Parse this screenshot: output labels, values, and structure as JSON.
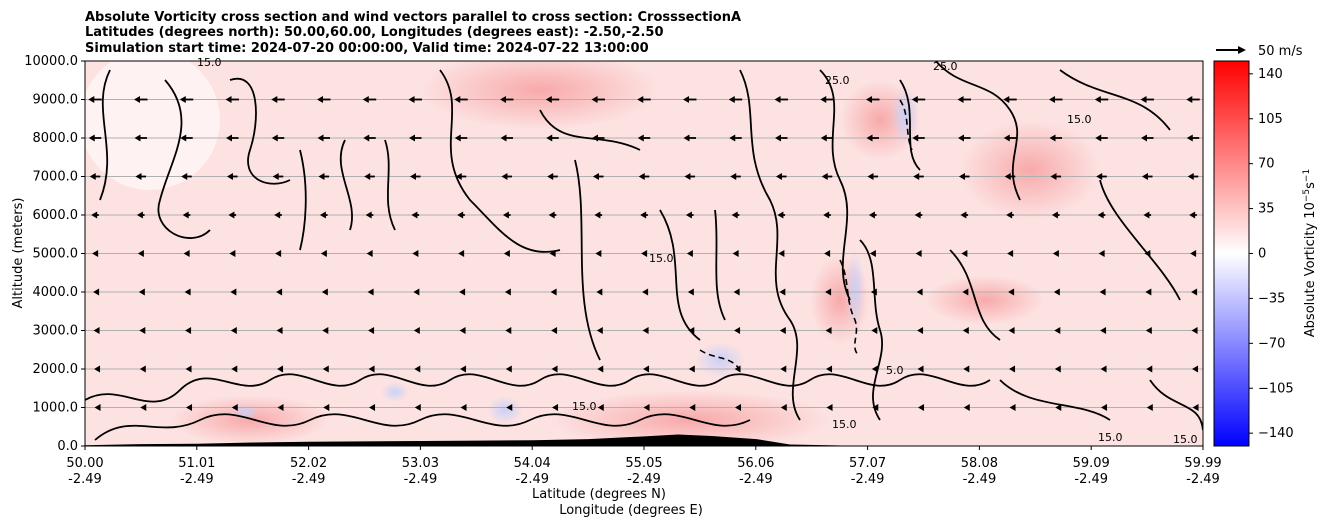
{
  "chart_data": {
    "type": "heatmap",
    "title": [
      "Absolute Vorticity cross section and wind vectors parallel to cross section: CrosssectionA",
      "Latitudes (degrees north): 50.00,60.00, Longitudes (degrees east): -2.50,-2.50",
      "Simulation start time: 2024-07-20 00:00:00, Valid time: 2024-07-22 13:00:00"
    ],
    "xlabel": [
      "Latitude (degrees N)",
      "Longitude (degrees E)"
    ],
    "ylabel": "Altitude (meters)",
    "x_ticks": [
      {
        "lat": "50.00",
        "lon": "-2.49"
      },
      {
        "lat": "51.01",
        "lon": "-2.49"
      },
      {
        "lat": "52.02",
        "lon": "-2.49"
      },
      {
        "lat": "53.03",
        "lon": "-2.49"
      },
      {
        "lat": "54.04",
        "lon": "-2.49"
      },
      {
        "lat": "55.05",
        "lon": "-2.49"
      },
      {
        "lat": "56.06",
        "lon": "-2.49"
      },
      {
        "lat": "57.07",
        "lon": "-2.49"
      },
      {
        "lat": "58.08",
        "lon": "-2.49"
      },
      {
        "lat": "59.09",
        "lon": "-2.49"
      },
      {
        "lat": "59.99",
        "lon": "-2.49"
      }
    ],
    "xlim": [
      50.0,
      59.99
    ],
    "y_ticks": [
      "0.0",
      "1000.0",
      "2000.0",
      "3000.0",
      "4000.0",
      "5000.0",
      "6000.0",
      "7000.0",
      "8000.0",
      "9000.0",
      "10000.0"
    ],
    "ylim": [
      0,
      10000
    ],
    "grid": "horizontal",
    "colorbar": {
      "label": "Absolute Vorticity 10^-5 s^-1",
      "label_main": "Absolute Vorticity 10",
      "label_exp": "−5",
      "label_unit": "s",
      "label_unit_exp": "−1",
      "ticks": [
        "140",
        "105",
        "70",
        "35",
        "0",
        "−35",
        "−70",
        "−105",
        "−140"
      ],
      "range": [
        -150,
        150
      ],
      "colormap": "bwr",
      "min_color": "#0000ff",
      "mid_color": "#ffffff",
      "max_color": "#ff0000"
    },
    "quiver_key": {
      "label": "50 m/s",
      "speed": 50
    },
    "contour_labels": [
      "5.0",
      "15.0",
      "25.0"
    ],
    "wind_profile": {
      "altitudes": [
        9000,
        8000,
        7000,
        6000,
        5000,
        4000,
        3000,
        2000,
        1000
      ],
      "speeds": [
        14,
        13,
        11,
        8,
        6,
        4,
        3,
        2,
        1
      ]
    },
    "terrain": [
      {
        "lat": 50.0,
        "h": 20
      },
      {
        "lat": 50.5,
        "h": 50
      },
      {
        "lat": 51.0,
        "h": 60
      },
      {
        "lat": 51.5,
        "h": 90
      },
      {
        "lat": 52.0,
        "h": 110
      },
      {
        "lat": 52.5,
        "h": 120
      },
      {
        "lat": 53.0,
        "h": 130
      },
      {
        "lat": 53.5,
        "h": 140
      },
      {
        "lat": 54.0,
        "h": 150
      },
      {
        "lat": 54.5,
        "h": 180
      },
      {
        "lat": 55.0,
        "h": 250
      },
      {
        "lat": 55.3,
        "h": 300
      },
      {
        "lat": 55.6,
        "h": 260
      },
      {
        "lat": 56.0,
        "h": 180
      },
      {
        "lat": 56.3,
        "h": 40
      },
      {
        "lat": 57.0,
        "h": 0
      },
      {
        "lat": 59.99,
        "h": 0
      }
    ]
  }
}
